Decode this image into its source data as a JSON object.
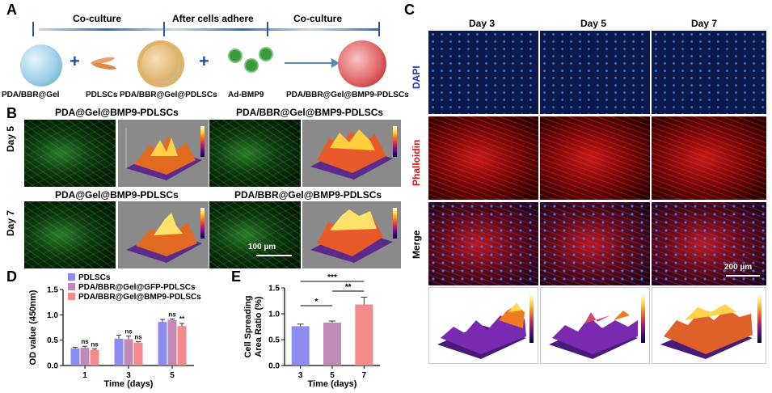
{
  "panel_letters": {
    "a": "A",
    "b": "B",
    "c": "C",
    "d": "D",
    "e": "E"
  },
  "panel_a": {
    "stages": [
      "Co-culture",
      "After cells adhere",
      "Co-culture"
    ],
    "items": [
      "PDA/BBR@Gel",
      "PDLSCs",
      "PDA/BBR@Gel@PDLSCs",
      "Ad-BMP9",
      "PDA/BBR@Gel@BMP9-PDLSCs"
    ],
    "plus": "+"
  },
  "panel_b": {
    "col_titles_day5": [
      "PDA@Gel@BMP9-PDLSCs",
      "PDA/BBR@Gel@BMP9-PDLSCs"
    ],
    "col_titles_day7": [
      "PDA@Gel@BMP9-PDLSCs",
      "PDA/BBR@Gel@BMP9-PDLSCs"
    ],
    "rows": [
      "Day 5",
      "Day 7"
    ],
    "scale_bar": "100 µm"
  },
  "panel_c": {
    "columns": [
      "Day 3",
      "Day 5",
      "Day 7"
    ],
    "rows": [
      "DAPI",
      "Phalloidin",
      "Merge"
    ],
    "scale_bar": "200 µm",
    "colors": {
      "dapi": "#2233bb",
      "phalloidin": "#dd1111"
    }
  },
  "chart_data": [
    {
      "type": "bar",
      "ylabel": "OD value (450nm)",
      "xlabel": "Time (days)",
      "categories": [
        "1",
        "3",
        "5"
      ],
      "ylim": [
        0,
        1.5
      ],
      "yticks": [
        "0.0",
        "0.5",
        "1.0",
        "1.5"
      ],
      "series": [
        {
          "name": "PDLSCs",
          "color": "#8c8cf0",
          "values": [
            0.34,
            0.53,
            0.86
          ],
          "errors": [
            0.02,
            0.07,
            0.05
          ]
        },
        {
          "name": "PDA/BBR@Gel@GFP-PDLSCs",
          "color": "#c08ab4",
          "values": [
            0.35,
            0.52,
            0.9
          ],
          "errors": [
            0.03,
            0.06,
            0.02
          ]
        },
        {
          "name": "PDA/BBR@Gel@BMP9-PDLSCs",
          "color": "#f48a8a",
          "values": [
            0.31,
            0.45,
            0.78
          ],
          "errors": [
            0.02,
            0.02,
            0.05
          ]
        }
      ],
      "annotations": {
        "day1": [
          "ns",
          "ns"
        ],
        "day3": [
          "ns",
          "ns"
        ],
        "day5": [
          "ns",
          "**"
        ]
      }
    },
    {
      "type": "bar",
      "ylabel": "Cell Spreading Area Ratio (%)",
      "xlabel": "Time (days)",
      "categories": [
        "3",
        "5",
        "7"
      ],
      "ylim": [
        0,
        1.5
      ],
      "yticks": [
        "0.0",
        "0.5",
        "1.0",
        "1.5"
      ],
      "values": [
        0.76,
        0.83,
        1.18
      ],
      "errors": [
        0.04,
        0.03,
        0.14
      ],
      "colors": [
        "#8c8cf0",
        "#c08ab4",
        "#f48a8a"
      ],
      "significance": [
        {
          "from": "3",
          "to": "5",
          "label": "*"
        },
        {
          "from": "5",
          "to": "7",
          "label": "**"
        },
        {
          "from": "3",
          "to": "7",
          "label": "***"
        }
      ]
    }
  ]
}
